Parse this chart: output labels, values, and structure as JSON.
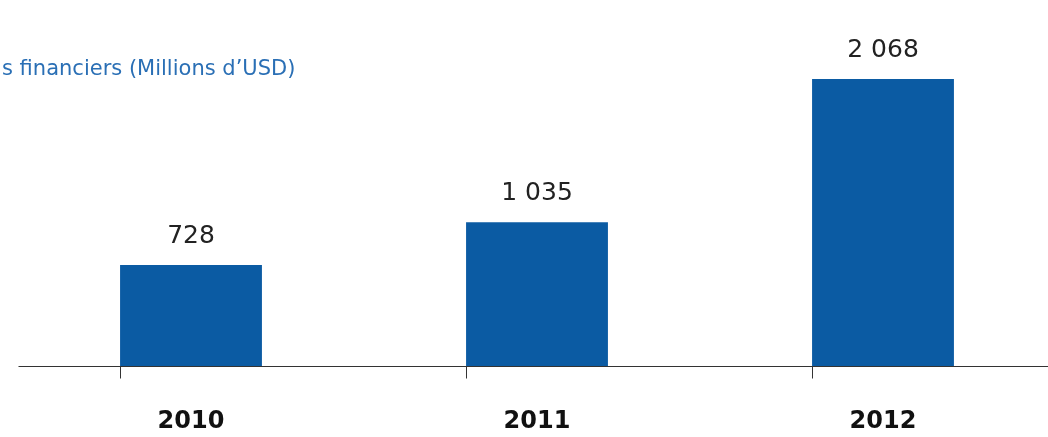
{
  "chart_data": {
    "type": "bar",
    "title": "s financiers (Millions d’USD)",
    "categories": [
      "2010",
      "2011",
      "2012"
    ],
    "values": [
      728,
      1035,
      2068
    ],
    "value_labels": [
      "728",
      "1 035",
      "2 068"
    ],
    "color": "#0b5ba3",
    "grid": false
  }
}
